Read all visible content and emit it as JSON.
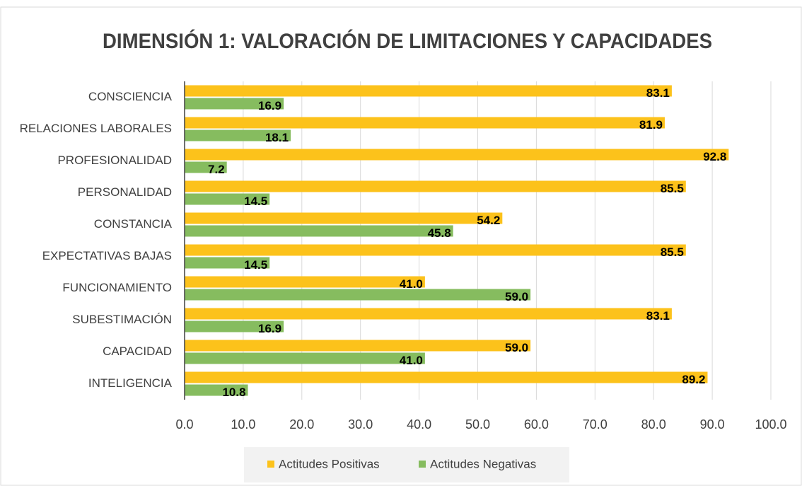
{
  "chart_data": {
    "type": "bar",
    "orientation": "horizontal",
    "title": "DIMENSIÓN 1: VALORACIÓN DE LIMITACIONES Y CAPACIDADES",
    "categories": [
      "CONSCIENCIA",
      "RELACIONES LABORALES",
      "PROFESIONALIDAD",
      "PERSONALIDAD",
      "CONSTANCIA",
      "EXPECTATIVAS BAJAS",
      "FUNCIONAMIENTO",
      "SUBESTIMACIÓN",
      "CAPACIDAD",
      "INTELIGENCIA"
    ],
    "series": [
      {
        "name": "Actitudes Positivas",
        "color": "#fcc21b",
        "values": [
          83.1,
          81.9,
          92.8,
          85.5,
          54.2,
          85.5,
          41.0,
          83.1,
          59.0,
          89.2
        ],
        "value_labels": [
          "83.1",
          "81.9",
          "92.8",
          "85.5",
          "54.2",
          "85.5",
          "41.0",
          "83.1",
          "59.0",
          "89.2"
        ]
      },
      {
        "name": "Actitudes Negativas",
        "color": "#86bc5f",
        "values": [
          16.9,
          18.1,
          7.2,
          14.5,
          45.8,
          14.5,
          59.0,
          16.9,
          41.0,
          10.8
        ],
        "value_labels": [
          "16.9",
          "18.1",
          "7.2",
          "14.5",
          "45.8",
          "14.5",
          "59.0",
          "16.9",
          "41.0",
          "10.8"
        ]
      }
    ],
    "xlim": [
      0,
      100
    ],
    "xticks": [
      {
        "value": 0,
        "label": "0.0"
      },
      {
        "value": 10,
        "label": "10.0"
      },
      {
        "value": 20,
        "label": "20.0"
      },
      {
        "value": 30,
        "label": "30.0"
      },
      {
        "value": 40,
        "label": "40.0"
      },
      {
        "value": 50,
        "label": "50.0"
      },
      {
        "value": 60,
        "label": "60.0"
      },
      {
        "value": 70,
        "label": "70.0"
      },
      {
        "value": 80,
        "label": "80.0"
      },
      {
        "value": 90,
        "label": "90.0"
      },
      {
        "value": 100,
        "label": "100.0"
      }
    ],
    "grid": true,
    "legend": "bottom"
  }
}
